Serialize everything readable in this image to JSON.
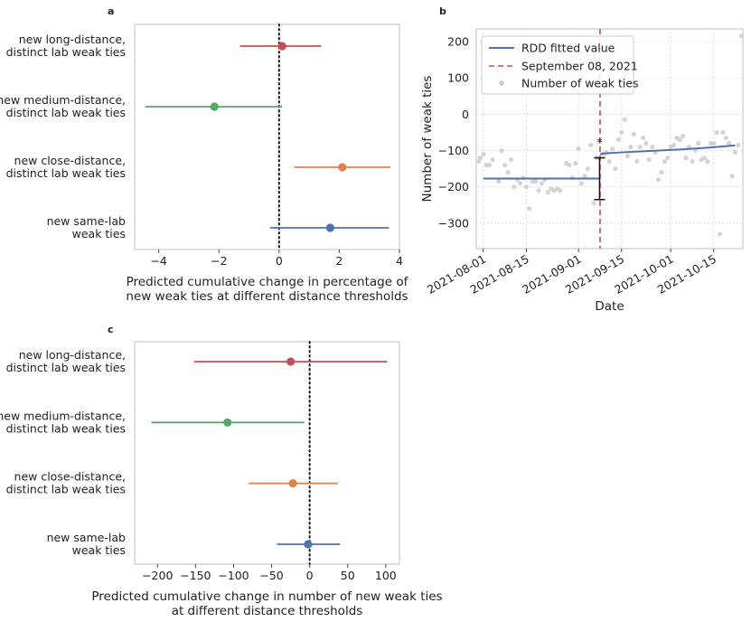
{
  "chart_data": [
    {
      "panel": "a",
      "type": "scatter",
      "subtype": "forest",
      "categories": [
        "new long-distance,\ndistinct lab weak ties",
        "new medium-distance,\ndistinct lab weak ties",
        "new close-distance,\ndistinct lab weak ties",
        "new same-lab\nweak ties"
      ],
      "series": [
        {
          "name": "new long-distance, distinct lab weak ties",
          "estimate": 0.1,
          "ci": [
            -1.3,
            1.4
          ],
          "color": "#c44e52"
        },
        {
          "name": "new medium-distance, distinct lab weak ties",
          "estimate": -2.15,
          "ci": [
            -4.45,
            0.1
          ],
          "color": "#55a868"
        },
        {
          "name": "new close-distance, distinct lab weak ties",
          "estimate": 2.1,
          "ci": [
            0.5,
            3.7
          ],
          "color": "#dd8452"
        },
        {
          "name": "new same-lab weak ties",
          "estimate": 1.7,
          "ci": [
            -0.3,
            3.65
          ],
          "color": "#4c72b0"
        }
      ],
      "xlim": [
        -4.8,
        4.0
      ],
      "xticks": [
        -4,
        -2,
        0,
        2,
        4
      ],
      "xtick_labels": [
        "−4",
        "−2",
        "0",
        "2",
        "4"
      ],
      "reference_line": 0,
      "xlabel": "Predicted cumulative change in percentage of\nnew weak ties at different distance thresholds",
      "ylabel": ""
    },
    {
      "panel": "b",
      "type": "scatter",
      "subtype": "regression discontinuity",
      "title": "",
      "xlabel": "Date",
      "ylabel": "Number of weak ties",
      "xtick_labels": [
        "2021-08-01",
        "2021-08-15",
        "2021-09-01",
        "2021-09-15",
        "2021-10-01",
        "2021-10-15"
      ],
      "yticks": [
        200,
        100,
        0,
        -100,
        -200,
        -300
      ],
      "ytick_labels": [
        "200",
        "100",
        "0",
        "−100",
        "−200",
        "−300"
      ],
      "ylim": [
        -370,
        235
      ],
      "xlim_days_from_2021_07_01": [
        28.7,
        115.5
      ],
      "cutoff": {
        "label": "September 08, 2021",
        "day": 69,
        "color": "#c44e52"
      },
      "legend": [
        "RDD fitted value",
        "September 08, 2021",
        "Number of weak ties"
      ],
      "legend_position": "top-left",
      "fitted": {
        "color": "#4c72b0",
        "before": {
          "x": [
            31,
            69
          ],
          "y": [
            -177,
            -177
          ]
        },
        "after": {
          "x": [
            69,
            70,
            76,
            85,
            95,
            104,
            113
          ],
          "y": [
            -110,
            -108,
            -105,
            -101,
            -97,
            -92,
            -86
          ]
        }
      },
      "error_bar": {
        "day": 69,
        "low": -235,
        "high": -120,
        "significance": "*"
      },
      "points": {
        "color": "#cccccc",
        "x": [
          29.5,
          30,
          31,
          32,
          33,
          34,
          36,
          37,
          38,
          39,
          40,
          41,
          42,
          43,
          44,
          45,
          46,
          47,
          48,
          49,
          50,
          51,
          52,
          53,
          54,
          55,
          56,
          58,
          59,
          60,
          61,
          62,
          63,
          64,
          65,
          66,
          67,
          68,
          70,
          71,
          72,
          73,
          74,
          75,
          76,
          77,
          78,
          79,
          80,
          81,
          82,
          83,
          84,
          85,
          86,
          87,
          88,
          89,
          90,
          91,
          92,
          93,
          94,
          95,
          96,
          97,
          98,
          99,
          100,
          101,
          102,
          103,
          104,
          105,
          106,
          107,
          108,
          109,
          110,
          111,
          112,
          113,
          114,
          115
        ],
        "y": [
          -130,
          -120,
          -110,
          -140,
          -140,
          -125,
          -185,
          -100,
          -140,
          -160,
          -125,
          -200,
          -180,
          -190,
          -175,
          -200,
          -260,
          -185,
          -185,
          -210,
          -190,
          -180,
          -215,
          -205,
          -210,
          -205,
          -210,
          -135,
          -140,
          -175,
          -135,
          -95,
          -190,
          -170,
          -150,
          -85,
          -245,
          -120,
          -110,
          -105,
          -130,
          -95,
          -150,
          -70,
          -50,
          -15,
          -115,
          -90,
          -55,
          -130,
          -90,
          -65,
          -80,
          -125,
          -90,
          -105,
          -180,
          -160,
          -130,
          -120,
          -90,
          -85,
          -65,
          -70,
          -60,
          -120,
          -90,
          -130,
          -100,
          -80,
          -125,
          -120,
          -130,
          -80,
          -80,
          -50,
          -330,
          -50,
          -65,
          -80,
          -170,
          -105,
          -85,
          215
        ]
      }
    },
    {
      "panel": "c",
      "type": "scatter",
      "subtype": "forest",
      "categories": [
        "new long-distance,\ndistinct lab weak ties",
        "new medium-distance,\ndistinct lab weak ties",
        "new close-distance,\ndistinct lab weak ties",
        "new same-lab\nweak ties"
      ],
      "series": [
        {
          "name": "new long-distance, distinct lab weak ties",
          "estimate": -25,
          "ci": [
            -152,
            102
          ],
          "color": "#c44e52"
        },
        {
          "name": "new medium-distance, distinct lab weak ties",
          "estimate": -108,
          "ci": [
            -208,
            -7
          ],
          "color": "#55a868"
        },
        {
          "name": "new close-distance, distinct lab weak ties",
          "estimate": -22,
          "ci": [
            -80,
            37
          ],
          "color": "#dd8452"
        },
        {
          "name": "new same-lab weak ties",
          "estimate": -2,
          "ci": [
            -43,
            40
          ],
          "color": "#4c72b0"
        }
      ],
      "xlim": [
        -230,
        118
      ],
      "xticks": [
        -200,
        -150,
        -100,
        -50,
        0,
        50,
        100
      ],
      "xtick_labels": [
        "−200",
        "−150",
        "−100",
        "−50",
        "0",
        "50",
        "100"
      ],
      "reference_line": 0,
      "xlabel": "Predicted cumulative change in number of new weak ties\nat different distance thresholds",
      "ylabel": ""
    }
  ]
}
